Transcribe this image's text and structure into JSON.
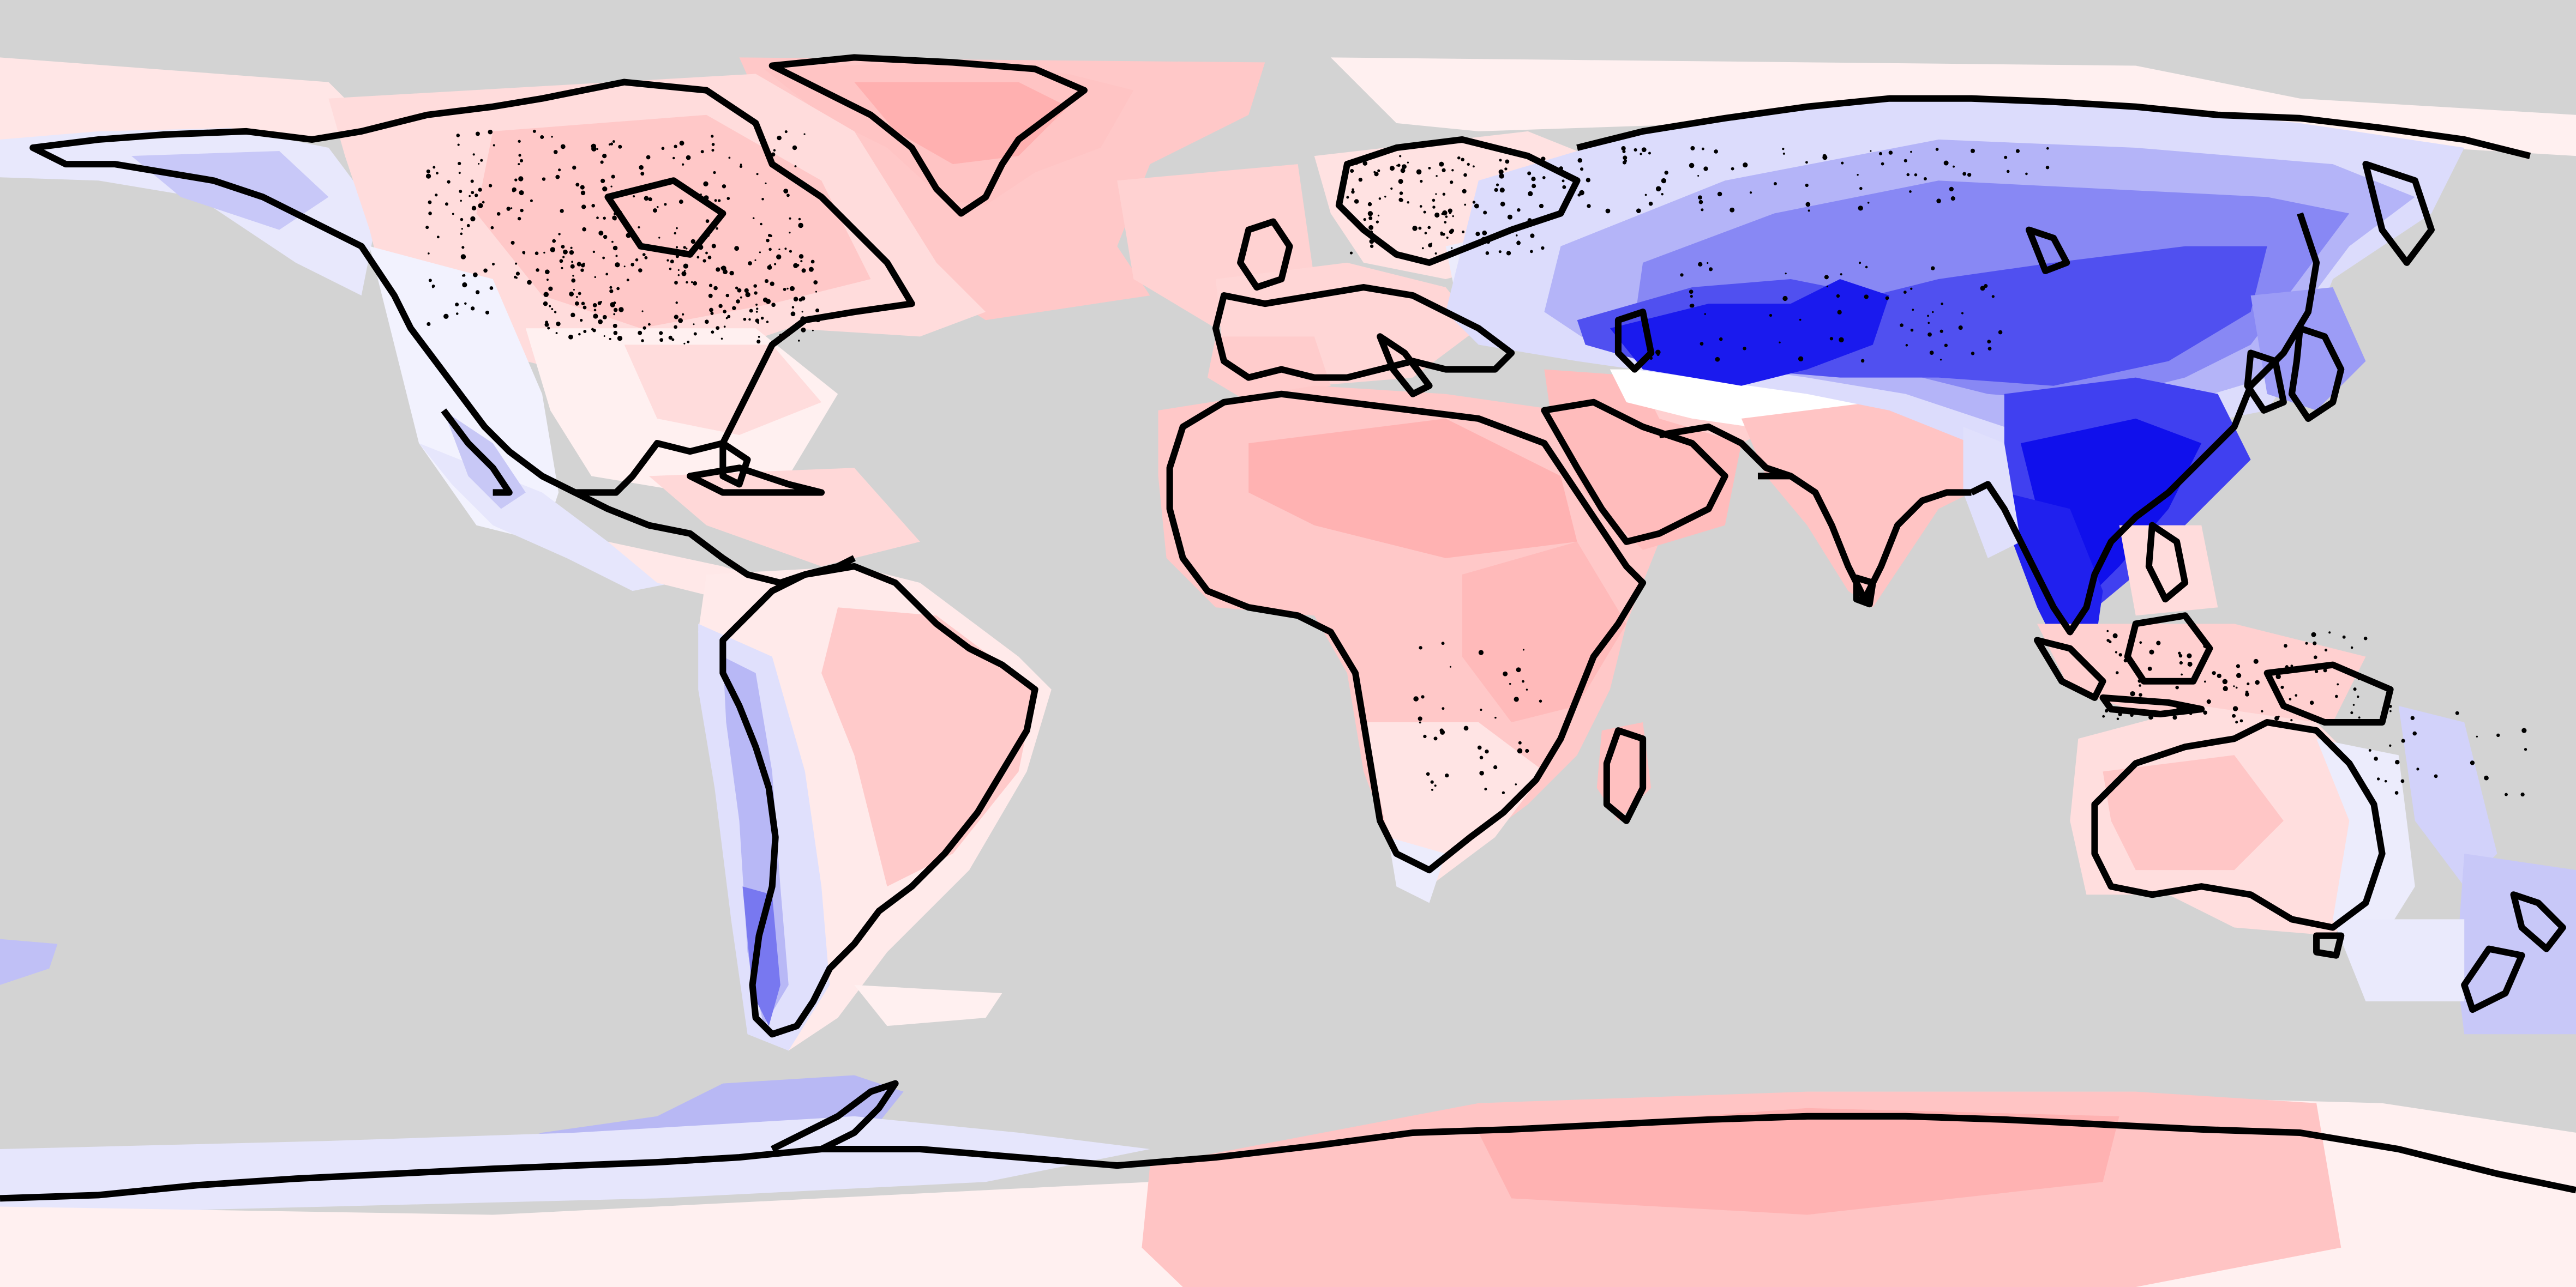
{
  "map": {
    "projection": "equirectangular",
    "ocean_color": "#d3d3d3",
    "coastline_color": "#000000",
    "palette": {
      "strong_negative": "#0000ee",
      "negative": "#3a3af2",
      "moderate_negative": "#7070f6",
      "weak_negative": "#a8a8f8",
      "slight_negative": "#dcdcfc",
      "near_zero": "#fff2f2",
      "slight_positive": "#ffdede",
      "positive": "#ffc4c4",
      "strong_positive": "#ffaaaa"
    },
    "regions": [
      "greenland",
      "north-america",
      "south-america",
      "africa",
      "europe",
      "middle-east",
      "india",
      "russia-siberia",
      "central-asia",
      "china-east-asia",
      "southeast-asia",
      "indonesia",
      "australia",
      "new-zealand",
      "antarctica",
      "north-atlantic",
      "southern-ocean"
    ]
  }
}
